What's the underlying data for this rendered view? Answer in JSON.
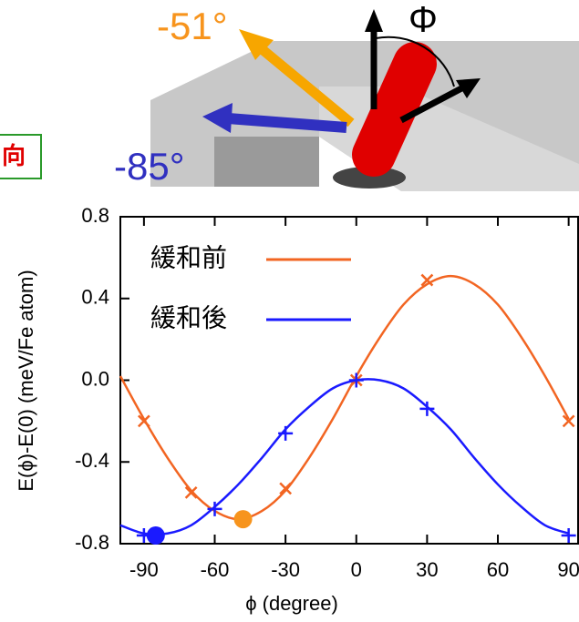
{
  "illustration": {
    "labels": [
      "-51°",
      "-85°",
      "Φ"
    ],
    "side_label": "向"
  },
  "chart_data": {
    "type": "line",
    "x_label": "ϕ (degree)",
    "y_label": "E(ϕ)-E(0) (meV/Fe atom)",
    "x": [
      -100,
      -90,
      -80,
      -70,
      -60,
      -50,
      -40,
      -30,
      -20,
      -10,
      0,
      10,
      20,
      30,
      40,
      50,
      60,
      70,
      80,
      90
    ],
    "series": [
      {
        "name": "緩和前",
        "color": "#f26522",
        "marker": "x",
        "values": [
          0.02,
          -0.19,
          -0.38,
          -0.54,
          -0.64,
          -0.68,
          -0.64,
          -0.54,
          -0.38,
          -0.19,
          0.02,
          0.21,
          0.37,
          0.47,
          0.51,
          0.47,
          0.37,
          0.21,
          0.02,
          -0.19
        ],
        "points_x": [
          -90,
          -70,
          -30,
          0,
          30,
          90
        ],
        "points": [
          -0.2,
          -0.55,
          -0.53,
          0.0,
          0.49,
          -0.2
        ],
        "highlight_x": -48,
        "highlight": -0.68,
        "highlight_color": "#f7941d"
      },
      {
        "name": "緩和後",
        "color": "#1a1aff",
        "marker": "+",
        "values": [
          -0.71,
          -0.75,
          -0.75,
          -0.71,
          -0.62,
          -0.51,
          -0.38,
          -0.24,
          -0.13,
          -0.04,
          0.0,
          0.0,
          -0.04,
          -0.13,
          -0.24,
          -0.38,
          -0.51,
          -0.62,
          -0.71,
          -0.75
        ],
        "points_x": [
          -90,
          -60,
          -30,
          0,
          30,
          90
        ],
        "points": [
          -0.76,
          -0.63,
          -0.26,
          0.0,
          -0.14,
          -0.76
        ],
        "highlight_x": -85,
        "highlight": -0.76,
        "highlight_color": "#1a1aff"
      }
    ],
    "xlim": [
      -100,
      94
    ],
    "ylim": [
      -0.8,
      0.8
    ],
    "xticks": [
      -90,
      -60,
      -30,
      0,
      30,
      60,
      90
    ],
    "yticks": [
      -0.8,
      -0.4,
      {
        "value": 0,
        "label": "0.0"
      },
      0.4,
      0.8
    ]
  }
}
